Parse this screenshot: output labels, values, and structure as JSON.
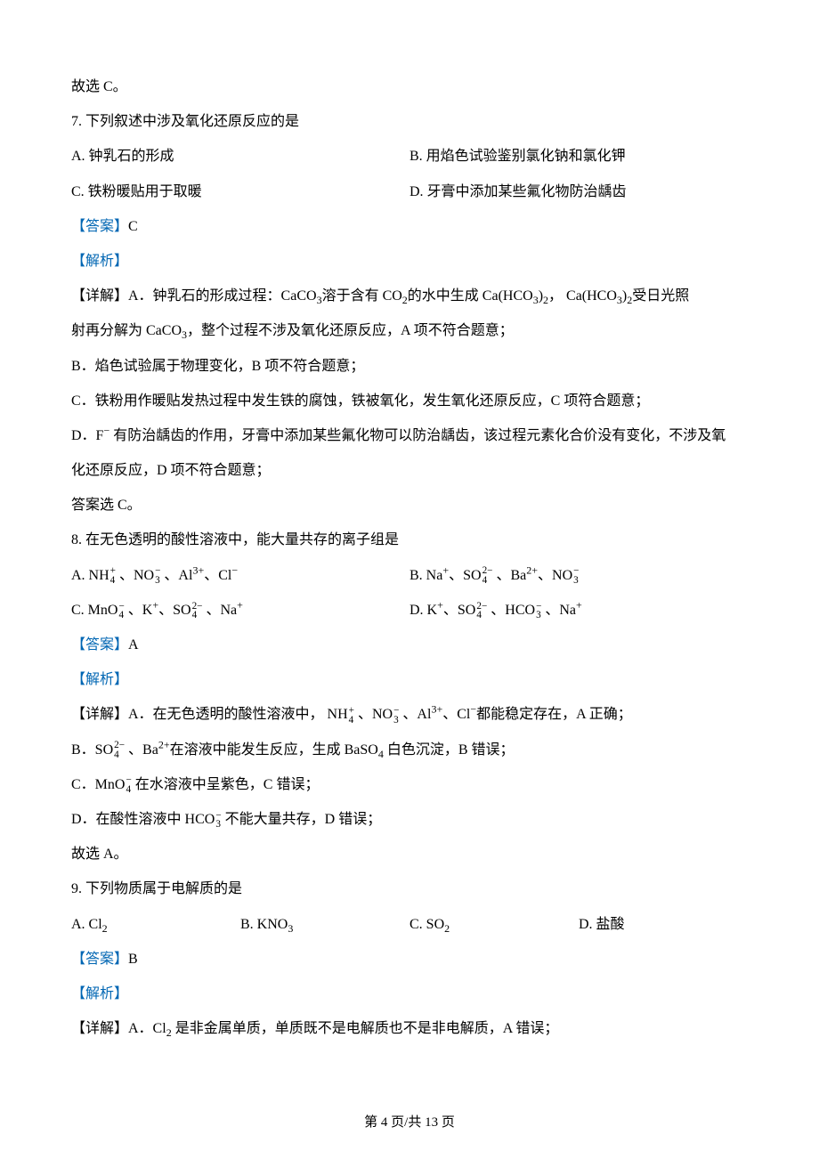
{
  "intro_line": "故选 C。",
  "q7": {
    "stem": "7. 下列叙述中涉及氧化还原反应的是",
    "opts": {
      "A": "A. 钟乳石的形成",
      "B": "B. 用焰色试验鉴别氯化钠和氯化钾",
      "C": "C. 铁粉暖贴用于取暖",
      "D": "D. 牙膏中添加某些氟化物防治龋齿"
    },
    "answer_label": "【答案】",
    "answer_value": "C",
    "analysis_label": "【解析】",
    "detail_A_1": "【详解】A．钟乳石的形成过程：CaCO",
    "detail_A_2": "溶于含有 CO",
    "detail_A_3": "的水中生成 Ca(HCO",
    "detail_A_4": ")",
    "detail_A_5": "， Ca(HCO",
    "detail_A_6": ")",
    "detail_A_7": "受日光照",
    "detail_A_sub3a": "3",
    "detail_A_sub2a": "2",
    "detail_A_sub3b": "3",
    "detail_A_sub2b": "2",
    "detail_A_sub3c": "3",
    "detail_A_sub2c": "2",
    "detail_A_line2_1": "射再分解为 CaCO",
    "detail_A_line2_sub": "3",
    "detail_A_line2_2": "，整个过程不涉及氧化还原反应，A 项不符合题意；",
    "detail_B": "B．焰色试验属于物理变化，B 项不符合题意；",
    "detail_C": "C．铁粉用作暖贴发热过程中发生铁的腐蚀，铁被氧化，发生氧化还原反应，C 项符合题意；",
    "detail_D_1": "D．F",
    "detail_D_sup": "−",
    "detail_D_2": " 有防治龋齿的作用，牙膏中添加某些氟化物可以防治龋齿，该过程元素化合价没有变化，不涉及氧",
    "detail_D_3": "化还原反应，D 项不符合题意；",
    "conclusion": "答案选 C。"
  },
  "q8": {
    "stem": "8. 在无色透明的酸性溶液中，能大量共存的离子组是",
    "optA_1": "A. NH",
    "optA_ss1_sup": "+",
    "optA_ss1_sub": "4",
    "optA_2": " 、NO",
    "optA_ss2_sup": "−",
    "optA_ss2_sub": "3",
    "optA_3": " 、Al",
    "optA_sup3": "3+",
    "optA_4": "、Cl",
    "optA_sup4": "−",
    "optB_1": "B. Na",
    "optB_sup1": "+",
    "optB_2": "、SO",
    "optB_ss1_sup": "2−",
    "optB_ss1_sub": "4",
    "optB_3": " 、Ba",
    "optB_sup2": "2+",
    "optB_4": "、NO",
    "optB_ss2_sup": "−",
    "optB_ss2_sub": "3",
    "optC_1": "C. MnO",
    "optC_ss1_sup": "−",
    "optC_ss1_sub": "4",
    "optC_2": " 、K",
    "optC_sup1": "+",
    "optC_3": "、SO",
    "optC_ss2_sup": "2−",
    "optC_ss2_sub": "4",
    "optC_4": " 、Na",
    "optC_sup2": "+",
    "optD_1": "D. K",
    "optD_sup1": "+",
    "optD_2": "、SO",
    "optD_ss1_sup": "2−",
    "optD_ss1_sub": "4",
    "optD_3": " 、HCO",
    "optD_ss2_sup": "−",
    "optD_ss2_sub": "3",
    "optD_4": " 、Na",
    "optD_sup2": "+",
    "answer_label": "【答案】",
    "answer_value": "A",
    "analysis_label": "【解析】",
    "dA_1": "【详解】A．在无色透明的酸性溶液中， NH",
    "dA_ss1_sup": "+",
    "dA_ss1_sub": "4",
    "dA_2": " 、NO",
    "dA_ss2_sup": "−",
    "dA_ss2_sub": "3",
    "dA_3": " 、Al",
    "dA_sup3": "3+",
    "dA_4": "、Cl",
    "dA_sup4": "−",
    "dA_5": "都能稳定存在，A 正确；",
    "dB_1": "B．SO",
    "dB_ss_sup": "2−",
    "dB_ss_sub": "4",
    "dB_2": " 、Ba",
    "dB_sup": "2+",
    "dB_3": "在溶液中能发生反应，生成 BaSO",
    "dB_sub": "4",
    "dB_4": " 白色沉淀，B 错误；",
    "dC_1": "C．MnO",
    "dC_ss_sup": "−",
    "dC_ss_sub": "4",
    "dC_2": " 在水溶液中呈紫色，C 错误；",
    "dD_1": "D．在酸性溶液中 HCO",
    "dD_ss_sup": "−",
    "dD_ss_sub": "3",
    "dD_2": " 不能大量共存，D 错误；",
    "conclusion": "故选 A。"
  },
  "q9": {
    "stem": "9. 下列物质属于电解质的是",
    "optA_1": "A. Cl",
    "optA_sub": "2",
    "optB_1": "B. KNO",
    "optB_sub": "3",
    "optC_1": "C. SO",
    "optC_sub": "2",
    "optD": "D. 盐酸",
    "answer_label": "【答案】",
    "answer_value": "B",
    "analysis_label": "【解析】",
    "dA_1": "【详解】A．Cl",
    "dA_sub": "2",
    "dA_2": " 是非金属单质，单质既不是电解质也不是非电解质，A 错误；"
  },
  "footer": "第 4 页/共 13 页"
}
